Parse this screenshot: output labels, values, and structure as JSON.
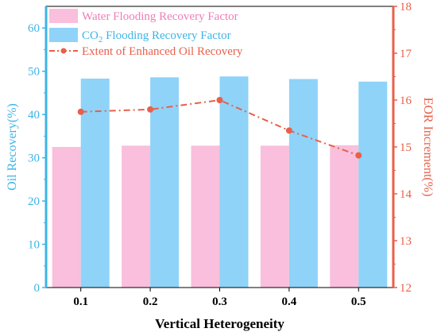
{
  "chart_data": {
    "type": "bar",
    "xlabel": "Vertical Heterogeneity",
    "categories": [
      "0.1",
      "0.2",
      "0.3",
      "0.4",
      "0.5"
    ],
    "series": [
      {
        "name": "Water Flooding Recovery Factor",
        "type": "bar",
        "axis": "left",
        "color": "#f9bfdc",
        "values": [
          32.5,
          32.8,
          32.8,
          32.8,
          32.9
        ]
      },
      {
        "name": "CO2 Flooding Recovery Factor",
        "name_parts": [
          "CO",
          "2",
          " Flooding Recovery Factor"
        ],
        "type": "bar",
        "axis": "left",
        "color": "#8fd3f8",
        "values": [
          48.3,
          48.6,
          48.8,
          48.2,
          47.6
        ]
      },
      {
        "name": "Extent of Enhanced Oil Recovery",
        "type": "line",
        "style": "dash-dot",
        "marker": "circle",
        "axis": "right",
        "color": "#e8604a",
        "values": [
          15.75,
          15.8,
          16.0,
          15.35,
          14.82
        ]
      }
    ],
    "y_left": {
      "label": "Oil Recovery(%)",
      "range": [
        0,
        65
      ],
      "ticks": [
        "0",
        "10",
        "20",
        "30",
        "40",
        "50",
        "60"
      ],
      "color": "#3cb4e6"
    },
    "y_right": {
      "label": "EOR Increment(%)",
      "range": [
        12,
        18
      ],
      "ticks": [
        "12",
        "13",
        "14",
        "15",
        "16",
        "17",
        "18"
      ],
      "color": "#e8604a"
    },
    "legend_position": "top-left",
    "grid": false
  }
}
